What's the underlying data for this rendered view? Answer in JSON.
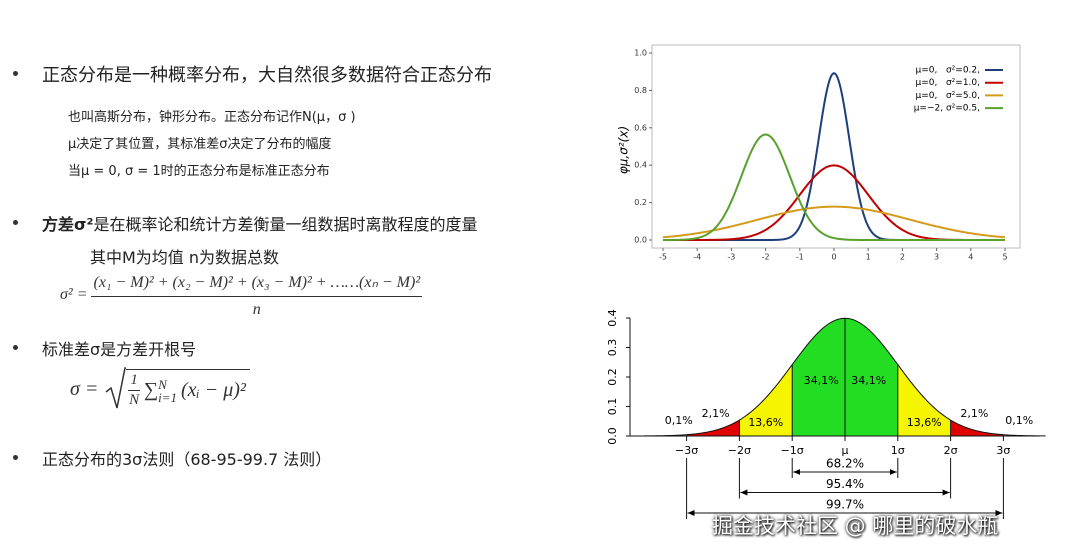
{
  "bullets": [
    {
      "text": "正态分布是一种概率分布，大自然很多数据符合正态分布",
      "notes": [
        "也叫高斯分布，钟形分布。正态分布记作N(μ，σ )",
        "μ决定了其位置，其标准差σ决定了分布的幅度",
        "当μ = 0, σ = 1时的正态分布是标准正态分布"
      ]
    },
    {
      "bold": "方差σ²",
      "text": "是在概率论和统计方差衡量一组数据时离散程度的度量",
      "notes": [
        "其中M为均值  n为数据总数"
      ]
    },
    {
      "text": "标准差σ是方差开根号"
    },
    {
      "text": "正态分布的3σ法则（68-95-99.7 法则）"
    }
  ],
  "variance_formula": {
    "lhs": "σ² =",
    "numerator": "(x₁ − M)² + (x₂ − M)² + (x₃ − M)² + ……(xₙ − M)²",
    "denominator": "n"
  },
  "std_formula": {
    "lhs": "σ =",
    "numerator": "1",
    "denominator": "N",
    "sum": "∑",
    "sum_top": "N",
    "sum_bottom": "i=1",
    "body": "(xᵢ − μ)²"
  },
  "chart_data": [
    {
      "type": "line",
      "y_label": "φμ,σ²(x)",
      "xlim": [
        -5,
        5
      ],
      "xticks": [
        -5,
        -4,
        -3,
        -2,
        -1,
        0,
        1,
        2,
        3,
        4,
        5
      ],
      "ylim": [
        0,
        1
      ],
      "yticks": [
        {
          "value": 0,
          "label": "0.0"
        },
        {
          "value": 0.2,
          "label": "0.2"
        },
        {
          "value": 0.4,
          "label": "0.4"
        },
        {
          "value": 0.6,
          "label": "0.6"
        },
        {
          "value": 0.8,
          "label": "0.8"
        },
        {
          "value": 1,
          "label": "1.0"
        }
      ],
      "series": [
        {
          "name": "μ=0,   σ²=0.2,",
          "color": "#1d3f7a",
          "mu": 0,
          "sigma2": 0.2
        },
        {
          "name": "μ=0,   σ²=1.0,",
          "color": "#c00000",
          "mu": 0,
          "sigma2": 1
        },
        {
          "name": "μ=0,   σ²=5.0,",
          "color": "#d49a1a",
          "mu": 0,
          "sigma2": 5
        },
        {
          "name": "μ=−2, σ²=0.5,",
          "color": "#5aa02c",
          "mu": -2,
          "sigma2": 0.5
        }
      ]
    },
    {
      "type": "sigma_rule",
      "ylim": [
        0,
        0.4
      ],
      "yticks": [
        {
          "value": 0,
          "label": "0.0"
        },
        {
          "value": 0.1,
          "label": "0.1"
        },
        {
          "value": 0.2,
          "label": "0.2"
        },
        {
          "value": 0.3,
          "label": "0.3"
        },
        {
          "value": 0.4,
          "label": "0.4"
        }
      ],
      "xticks": [
        {
          "value": -3,
          "label": "−3σ"
        },
        {
          "value": -2,
          "label": "−2σ"
        },
        {
          "value": -1,
          "label": "−1σ"
        },
        {
          "value": 0,
          "label": "μ"
        },
        {
          "value": 1,
          "label": "1σ"
        },
        {
          "value": 2,
          "label": "2σ"
        },
        {
          "value": 3,
          "label": "3σ"
        }
      ],
      "regions": {
        "values": [
          0.1,
          2.1,
          13.6,
          34.1,
          34.1,
          13.6,
          2.1,
          0.1
        ],
        "value_labels": [
          "0,1%",
          "2,1%",
          "13,6%",
          "34,1%",
          "34,1%",
          "13,6%",
          "2,1%",
          "0,1%"
        ],
        "colors": [
          "#ffffff",
          "#e00000",
          "#f5f500",
          "#22dd22",
          "#22dd22",
          "#f5f500",
          "#e00000",
          "#ffffff"
        ]
      },
      "ranges": {
        "values": [
          68.2,
          95.4,
          99.7
        ],
        "value_labels": [
          "68.2%",
          "95.4%",
          "99.7%"
        ]
      }
    }
  ],
  "watermark": "掘金技术社区 @ 哪里的破水瓶"
}
